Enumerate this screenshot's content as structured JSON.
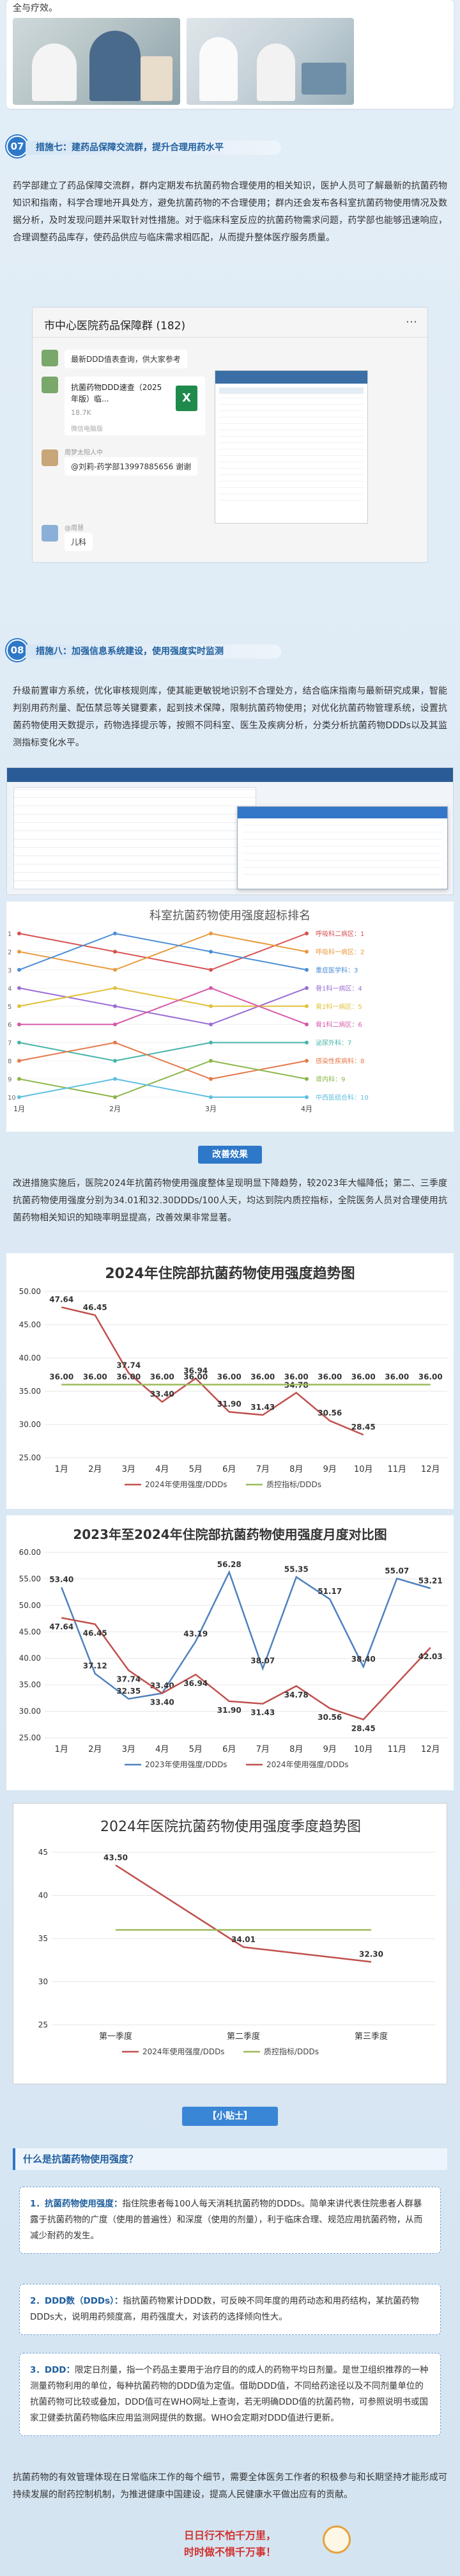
{
  "top_text": "全与疗效。",
  "section7": {
    "num": "07",
    "title": "措施七：建药品保障交流群，提升合理用药水平",
    "body": "药学部建立了药品保障交流群，群内定期发布抗菌药物合理使用的相关知识，医护人员可了解最新的抗菌药物知识和指南，科学合理地开具处方，避免抗菌药物的不合理使用；群内还会发布各科室抗菌药物使用情况及数据分析，及时发现问题并采取针对性措施。对于临床科室反应的抗菌药物需求问题，药学部也能够迅速响应，合理调整药品库存，使药品供应与临床需求相匹配，从而提升整体医疗服务质量。"
  },
  "wechat": {
    "group_title": "市中心医院药品保障群 (182)",
    "msg1": "最新DDD值表查询，供大家参考",
    "file_name": "抗菌药物DDD速查（2025年版）临...",
    "file_size": "18.7K",
    "file_source": "微信电脑版",
    "sender2": "周梦太阳人中",
    "msg2": "@刘莉-药学部13997885656 谢谢",
    "sender3": "@周慧",
    "msg3": "儿科"
  },
  "section8": {
    "num": "08",
    "title": "措施八：加强信息系统建设，使用强度实时监测",
    "body": "升级前置审方系统，优化审核规则库，使其能更敏锐地识别不合理处方，结合临床指南与最新研究成果，智能判别用药剂量、配伍禁忌等关键要素，起到技术保障，限制抗菌药物使用；对优化抗菌药物管理系统，设置抗菌药物使用天数提示，药物选择提示等，按照不同科室、医生及疾病分析，分类分析抗菌药物DDDs以及其监测指标变化水平。"
  },
  "rank_chart": {
    "title": "科室抗菌药物使用强度超标排名",
    "x": [
      "1月",
      "2月",
      "3月",
      "4月"
    ],
    "series": [
      {
        "name": "呼吸科二病区：1",
        "values": [
          1,
          2,
          3,
          1
        ],
        "color": "#d94f4f"
      },
      {
        "name": "呼吸科一病区：2",
        "values": [
          2,
          3,
          1,
          2
        ],
        "color": "#e89a3c"
      },
      {
        "name": "重症医学科：3",
        "values": [
          3,
          1,
          2,
          3
        ],
        "color": "#4a8ed6"
      },
      {
        "name": "骨1科一病区：4",
        "values": [
          4,
          5,
          6,
          4
        ],
        "color": "#9b6dd6"
      },
      {
        "name": "骨2科一病区：5",
        "values": [
          5,
          4,
          5,
          5
        ],
        "color": "#e0c13a"
      },
      {
        "name": "骨1科二病区：6",
        "values": [
          6,
          6,
          4,
          6
        ],
        "color": "#d658a8"
      },
      {
        "name": "泌尿外科：7",
        "values": [
          7,
          8,
          7,
          7
        ],
        "color": "#46b5a8"
      },
      {
        "name": "感染性疾病科：8",
        "values": [
          8,
          7,
          9,
          8
        ],
        "color": "#e5794a"
      },
      {
        "name": "肾内科：9",
        "values": [
          9,
          10,
          8,
          9
        ],
        "color": "#8bb546"
      },
      {
        "name": "中西医结合科：10",
        "values": [
          10,
          9,
          10,
          10
        ],
        "color": "#5fbfe0"
      }
    ]
  },
  "results": {
    "label": "改善效果",
    "body": "改进措施实施后，医院2024年抗菌药物使用强度整体呈现明显下降趋势，较2023年大幅降低；第二、三季度抗菌药物使用强度分别为34.01和32.30DDDs/100人天，均达到院内质控指标，全院医务人员对合理使用抗菌药物相关知识的知晓率明显提高，改善效果非常显著。"
  },
  "chart1": {
    "type": "line",
    "title": "2024年住院部抗菌药物使用强度趋势图",
    "categories": [
      "1月",
      "2月",
      "3月",
      "4月",
      "5月",
      "6月",
      "7月",
      "8月",
      "9月",
      "10月",
      "11月",
      "12月"
    ],
    "series": [
      {
        "name": "2024年使用强度/DDDs",
        "values": [
          47.64,
          46.45,
          37.74,
          33.4,
          36.94,
          31.9,
          31.43,
          34.78,
          30.56,
          28.45,
          null,
          null
        ],
        "color": "#c0504d"
      },
      {
        "name": "质控指标/DDDs",
        "values": [
          36.0,
          36.0,
          36.0,
          36.0,
          36.0,
          36.0,
          36.0,
          36.0,
          36.0,
          36.0,
          36.0,
          36.0
        ],
        "color": "#9bbb59"
      }
    ],
    "ylim": [
      25,
      50
    ],
    "yticks": [
      "25.00",
      "30.00",
      "35.00",
      "40.00",
      "45.00",
      "50.00"
    ]
  },
  "chart2": {
    "type": "line",
    "title": "2023年至2024年住院部抗菌药物使用强度月度对比图",
    "categories": [
      "1月",
      "2月",
      "3月",
      "4月",
      "5月",
      "6月",
      "7月",
      "8月",
      "9月",
      "10月",
      "11月",
      "12月"
    ],
    "series": [
      {
        "name": "2023年使用强度/DDDs",
        "values": [
          53.4,
          37.12,
          32.35,
          33.4,
          43.19,
          56.28,
          38.07,
          55.35,
          51.17,
          38.4,
          55.07,
          53.21
        ],
        "color": "#4f81bd"
      },
      {
        "name": "2024年使用强度/DDDs",
        "values": [
          47.64,
          46.45,
          37.74,
          33.4,
          36.94,
          31.9,
          31.43,
          34.78,
          30.56,
          28.45,
          null,
          42.03
        ],
        "color": "#c0504d"
      }
    ],
    "ylim": [
      25,
      60
    ],
    "yticks": [
      "25.00",
      "30.00",
      "35.00",
      "40.00",
      "45.00",
      "50.00",
      "55.00",
      "60.00"
    ]
  },
  "chart3": {
    "type": "line",
    "title": "2024年医院抗菌药物使用强度季度趋势图",
    "categories": [
      "第一季度",
      "第二季度",
      "第三季度"
    ],
    "series": [
      {
        "name": "2024年使用强度/DDDs",
        "values": [
          43.5,
          34.01,
          32.3
        ],
        "color": "#c0504d"
      },
      {
        "name": "质控指标/DDDs",
        "values": [
          36,
          36,
          36
        ],
        "color": "#9bbb59"
      }
    ],
    "ylim": [
      25,
      45
    ],
    "yticks": [
      "25",
      "30",
      "35",
      "40",
      "45"
    ]
  },
  "tips": {
    "tag": "【小贴士】",
    "question": "什么是抗菌药物使用强度？",
    "item1_title": "1．抗菌药物使用强度：",
    "item1": "指住院患者每100人每天消耗抗菌药物的DDDs。简单来讲代表住院患者人群暴露于抗菌药物的广度（使用的普遍性）和深度（使用的剂量），利于临床合理、规范应用抗菌药物，从而减少耐药的发生。",
    "item2_title": "2．DDD数（DDDs）：",
    "item2": "指抗菌药物累计DDD数，可反映不同年度的用药动态和用药结构，某抗菌药物DDDs大，说明用药频度高，用药强度大，对该药的选择倾向性大。",
    "item3_title": "3．DDD：",
    "item3": "限定日剂量，指一个药品主要用于治疗目的的成人的药物平均日剂量。是世卫组织推荐的一种测量药物利用的单位，每种抗菌药物的DDD值为定值。借助DDD值，不同给药途径以及不同剂量单位的抗菌药物可比较或叠加，DDD值可在WHO网址上查询，若无明确DDD值的抗菌药物，可参照说明书或国家卫健委抗菌药物临床应用监测网提供的数据。WHO会定期对DDD值进行更新。"
  },
  "closing": {
    "body": "抗菌药物的有效管理体现在日常临床工作的每个细节，需要全体医务工作者的积极参与和长期坚持才能形成可持续发展的耐药控制机制，为推进健康中国建设，提高人民健康水平做出应有的贡献。",
    "slogan1": "日日行不怕千万里，",
    "slogan2": "时时做不惧千万事！"
  }
}
